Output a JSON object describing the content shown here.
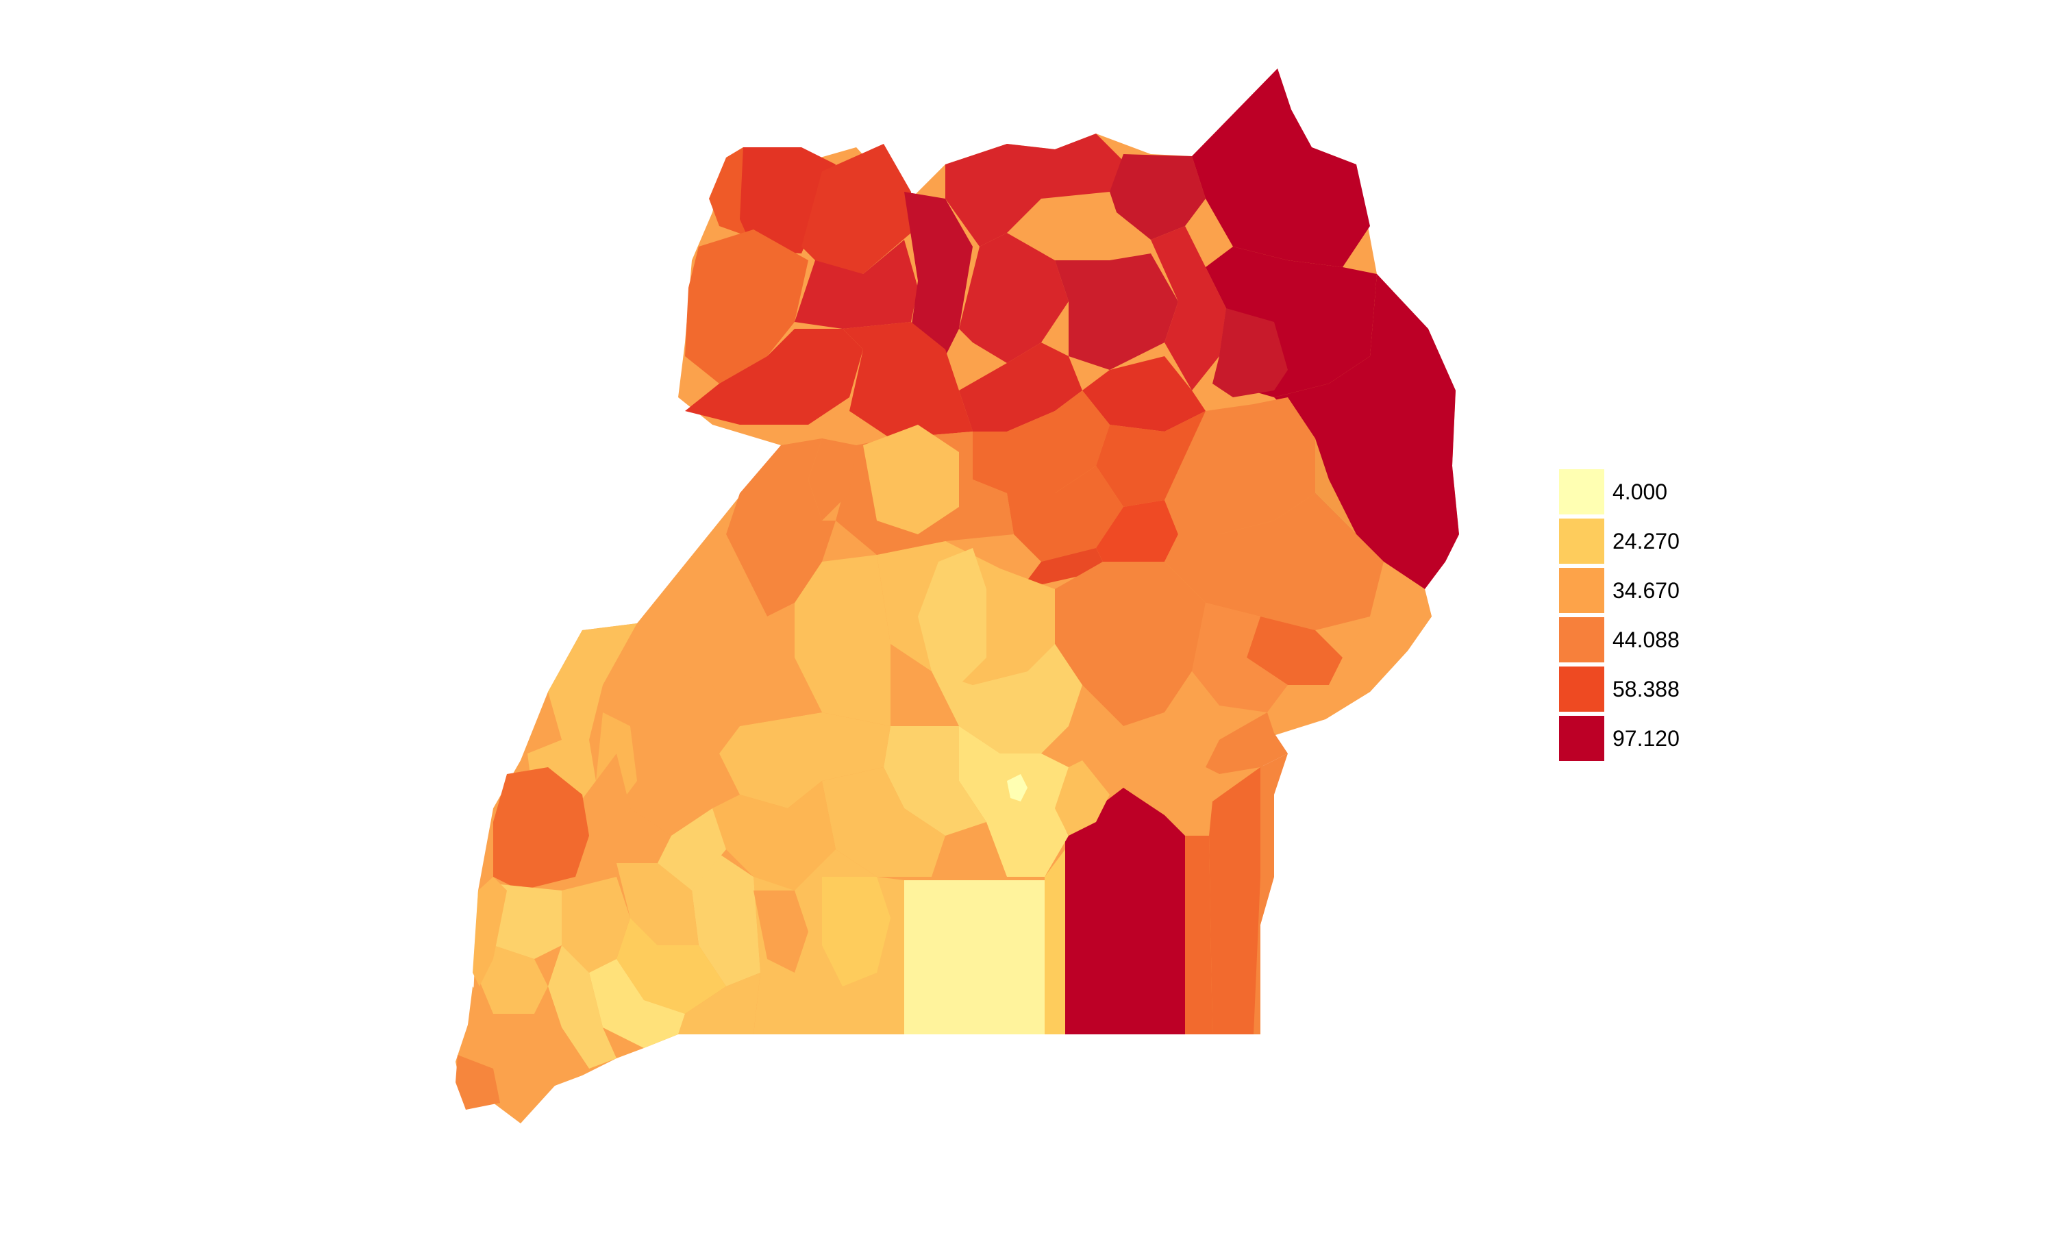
{
  "map": {
    "legend": {
      "items": [
        {
          "label": "4.000",
          "color": "#FFFFB2"
        },
        {
          "label": "24.270",
          "color": "#FECC5C"
        },
        {
          "label": "34.670",
          "color": "#FDA349"
        },
        {
          "label": "44.088",
          "color": "#F7803B"
        },
        {
          "label": "58.388",
          "color": "#EE4A22"
        },
        {
          "label": "97.120",
          "color": "#BD0026"
        }
      ]
    },
    "colors": {
      "class1": "#FFF39C",
      "class2": "#FDD16A",
      "class3": "#FBA24C",
      "class4": "#F6863D",
      "class5": "#EF5A28",
      "class6": "#BD0026",
      "deep_red": "#D9262A",
      "mid_red": "#CC1E2C"
    }
  }
}
